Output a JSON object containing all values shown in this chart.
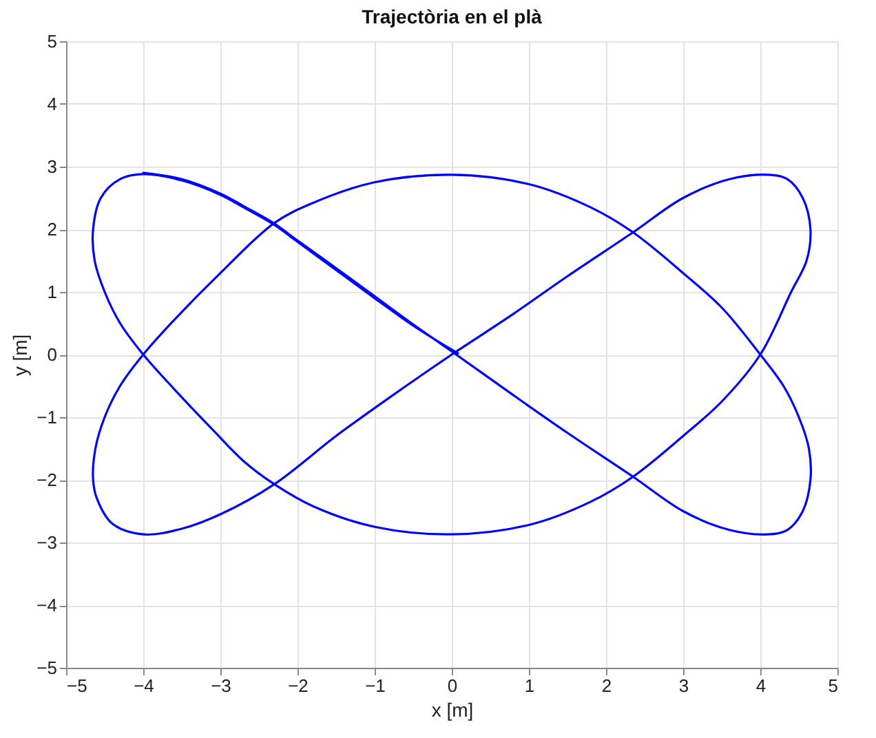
{
  "chart_data": {
    "type": "line",
    "title": "Trajectòria en el plà",
    "xlabel": "x [m]",
    "ylabel": "y [m]",
    "xlim": [
      -5,
      5
    ],
    "ylim": [
      -5,
      5
    ],
    "xticks": [
      -5,
      -4,
      -3,
      -2,
      -1,
      0,
      1,
      2,
      3,
      4,
      5
    ],
    "yticks": [
      -5,
      -4,
      -3,
      -2,
      -1,
      0,
      1,
      2,
      3,
      4,
      5
    ],
    "grid": true,
    "marker": "none",
    "line_style": "solid",
    "series": [
      {
        "color": "#0000ff",
        "x": [
          0.08,
          -0.45,
          -1,
          -1.5,
          -2,
          -2.3,
          -2.7,
          -3,
          -3.5,
          -4,
          -4.3,
          -4.55,
          -4.65,
          -4.63,
          -4.5,
          -4.3,
          -4,
          -3.6,
          -3.1,
          -2.7,
          -2.3,
          -1.8,
          -1,
          0,
          1,
          1.8,
          2.35,
          3,
          3.5,
          4,
          4.4,
          4.6,
          4.65,
          4.55,
          4.35,
          4.1,
          3.6,
          3,
          2.35,
          1.5,
          0.8,
          0,
          -0.8,
          -1.5,
          -2.3,
          -3,
          -3.5,
          -4,
          -4.4,
          -4.6,
          -4.65,
          -4.62,
          -4.5,
          -4.3,
          -4,
          -3.6,
          -3,
          -2.3,
          -1.8,
          -1,
          0,
          1,
          1.8,
          2.35,
          3,
          3.5,
          4,
          4.3,
          4.5,
          4.63,
          4.65,
          4.55,
          4.35,
          4.1,
          3.6,
          3,
          2.35,
          1.5,
          0.8,
          0,
          -0.5,
          -1,
          -1.5,
          -2,
          -2.3,
          -2.7,
          -3,
          -3.5,
          -4
        ],
        "values": [
          0.02,
          0.42,
          0.9,
          1.35,
          1.8,
          2.07,
          2.35,
          2.55,
          2.78,
          2.88,
          2.8,
          2.5,
          2,
          1.5,
          1,
          0.5,
          0,
          -0.55,
          -1.2,
          -1.7,
          -2.07,
          -2.42,
          -2.75,
          -2.87,
          -2.72,
          -2.35,
          -1.95,
          -1.3,
          -0.75,
          0,
          1,
          1.5,
          2,
          2.5,
          2.8,
          2.87,
          2.8,
          2.5,
          1.95,
          1.25,
          0.65,
          0,
          -0.68,
          -1.3,
          -2.07,
          -2.55,
          -2.78,
          -2.87,
          -2.7,
          -2.3,
          -2,
          -1.5,
          -1,
          -0.5,
          0,
          0.55,
          1.3,
          2.1,
          2.42,
          2.75,
          2.87,
          2.72,
          2.35,
          1.95,
          1.3,
          0.75,
          0,
          -0.5,
          -1,
          -1.5,
          -2,
          -2.5,
          -2.8,
          -2.87,
          -2.8,
          -2.5,
          -1.95,
          -1.25,
          -0.65,
          0.05,
          0.48,
          0.93,
          1.38,
          1.82,
          2.09,
          2.37,
          2.57,
          2.8,
          2.9
        ]
      }
    ]
  }
}
